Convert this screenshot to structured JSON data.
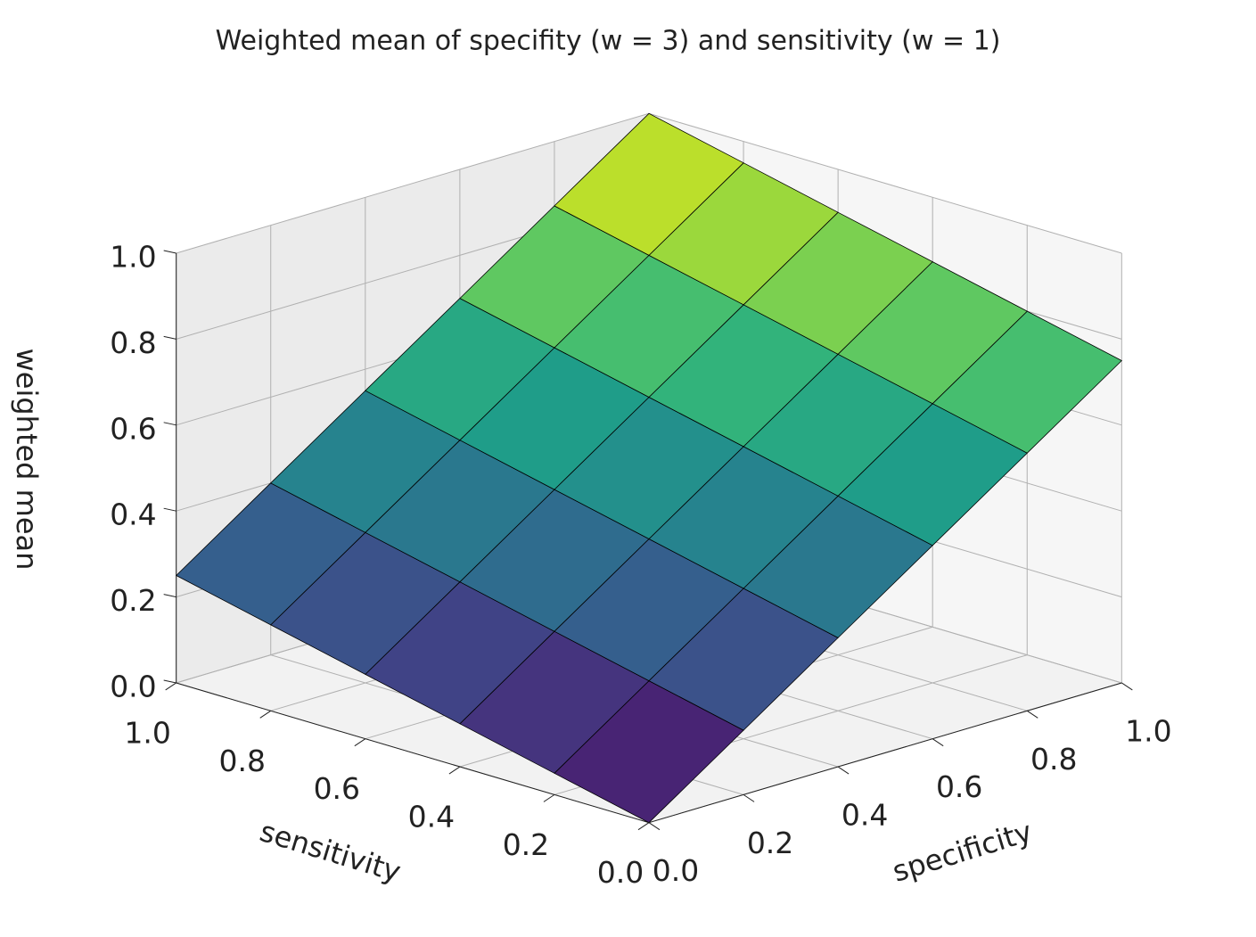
{
  "chart_data": {
    "type": "surface3d",
    "title": "Weighted mean of specifity (w = 3) and sensitivity (w = 1)",
    "xlabel": "specificity",
    "ylabel": "sensitivity",
    "zlabel": "weighted mean",
    "x": [
      0,
      0.2,
      0.4,
      0.6,
      0.8,
      1
    ],
    "y": [
      0,
      0.2,
      0.4,
      0.6,
      0.8,
      1
    ],
    "z": [
      [
        0,
        0.15,
        0.3,
        0.45,
        0.6,
        0.75
      ],
      [
        0.05,
        0.2,
        0.35,
        0.5,
        0.65,
        0.8
      ],
      [
        0.1,
        0.25,
        0.4,
        0.55,
        0.7,
        0.85
      ],
      [
        0.15,
        0.3,
        0.45,
        0.6,
        0.75,
        0.9
      ],
      [
        0.2,
        0.35,
        0.5,
        0.65,
        0.8,
        0.95
      ],
      [
        0.25,
        0.4,
        0.55,
        0.7,
        0.85,
        1
      ]
    ],
    "colormap": "viridis",
    "edgecolor": "#000000",
    "xlim": [
      0,
      1
    ],
    "ylim": [
      0,
      1
    ],
    "zlim": [
      0,
      1
    ],
    "xticks": [
      {
        "value": 0,
        "label": "0.0"
      },
      0.2,
      0.4,
      0.6,
      0.8,
      {
        "value": 1,
        "label": "1.0"
      }
    ],
    "yticks": [
      {
        "value": 0,
        "label": "0.0"
      },
      0.2,
      0.4,
      0.6,
      0.8,
      {
        "value": 1,
        "label": "1.0"
      }
    ],
    "zticks": [
      {
        "value": 0,
        "label": "0.0"
      },
      0.2,
      0.4,
      0.6,
      0.8,
      {
        "value": 1,
        "label": "1.0"
      }
    ],
    "grid": true
  }
}
